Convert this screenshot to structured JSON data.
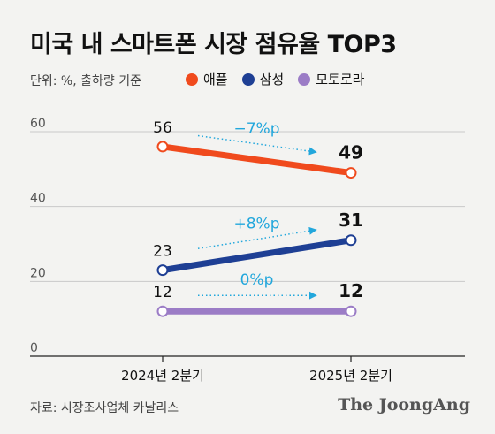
{
  "title": "미국 내 스마트폰 시장 점유율 TOP3",
  "unit_note": "단위: %, 출하량 기준",
  "source": "자료: 시장조사업체 카날리스",
  "brand": "The JoongAng",
  "chart_data": {
    "type": "line",
    "categories": [
      "2024년 2분기",
      "2025년 2분기"
    ],
    "ylim": [
      0,
      60
    ],
    "yticks": [
      0,
      20,
      40,
      60
    ],
    "grid": true,
    "legend_position": "top",
    "series": [
      {
        "name": "애플",
        "color": "#f04a1d",
        "values": [
          56,
          49
        ],
        "change_label": "−7%p"
      },
      {
        "name": "삼성",
        "color": "#1e3f94",
        "values": [
          23,
          31
        ],
        "change_label": "+8%p"
      },
      {
        "name": "모토로라",
        "color": "#9b7cc6",
        "values": [
          12,
          12
        ],
        "change_label": "0%p"
      }
    ],
    "annotation_color": "#22a7dc"
  }
}
